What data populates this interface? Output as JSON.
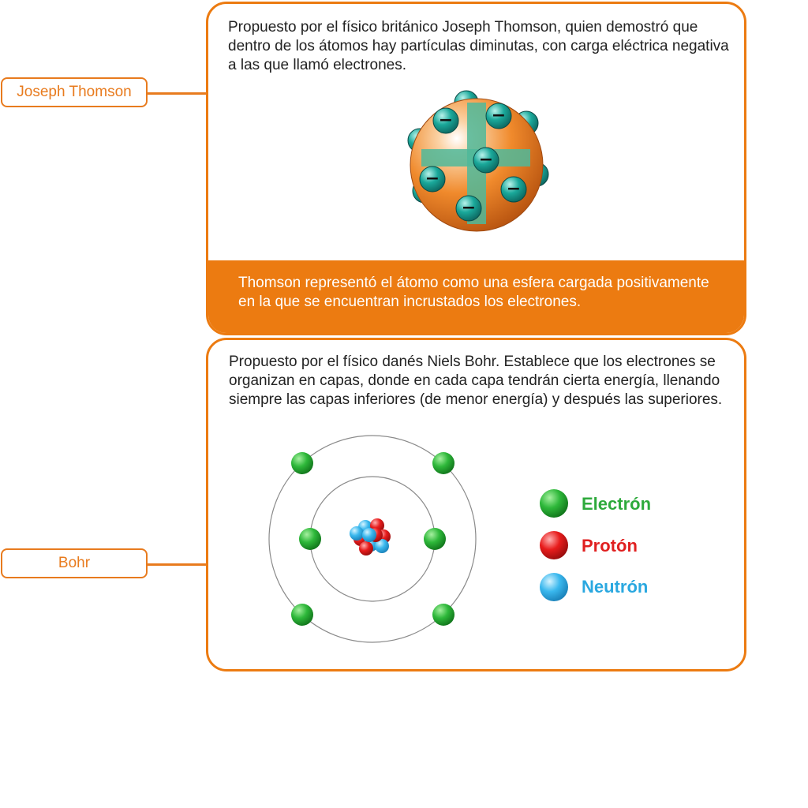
{
  "models": {
    "thomson": {
      "label": "Joseph Thomson",
      "description": "Propuesto por el físico británico Joseph Thomson, quien demostró que dentro de los átomos hay partículas diminutas, con carga eléctrica negativa a las que llamó electrones.",
      "footer": "Thomson representó el átomo como una esfera cargada positivamente en la que se encuentran incrustados los electrones.",
      "electron_symbol": "−"
    },
    "bohr": {
      "label": "Bohr",
      "description": "Propuesto por el físico danés Niels Bohr. Establece que los electrones se organizan en capas, donde en cada capa tendrán cierta energía, llenando siempre las capas inferiores (de menor energía) y después las superiores.",
      "legend": [
        {
          "label": "Electrón",
          "color": "#2eaa3c"
        },
        {
          "label": "Protón",
          "color": "#e02020"
        },
        {
          "label": "Neutrón",
          "color": "#2aa8e0"
        }
      ]
    }
  },
  "colors": {
    "accent": "#ec7b11",
    "sphere": "#f08a2c",
    "cross": "#4fb89a",
    "electron_teal": "#1aa89a"
  }
}
